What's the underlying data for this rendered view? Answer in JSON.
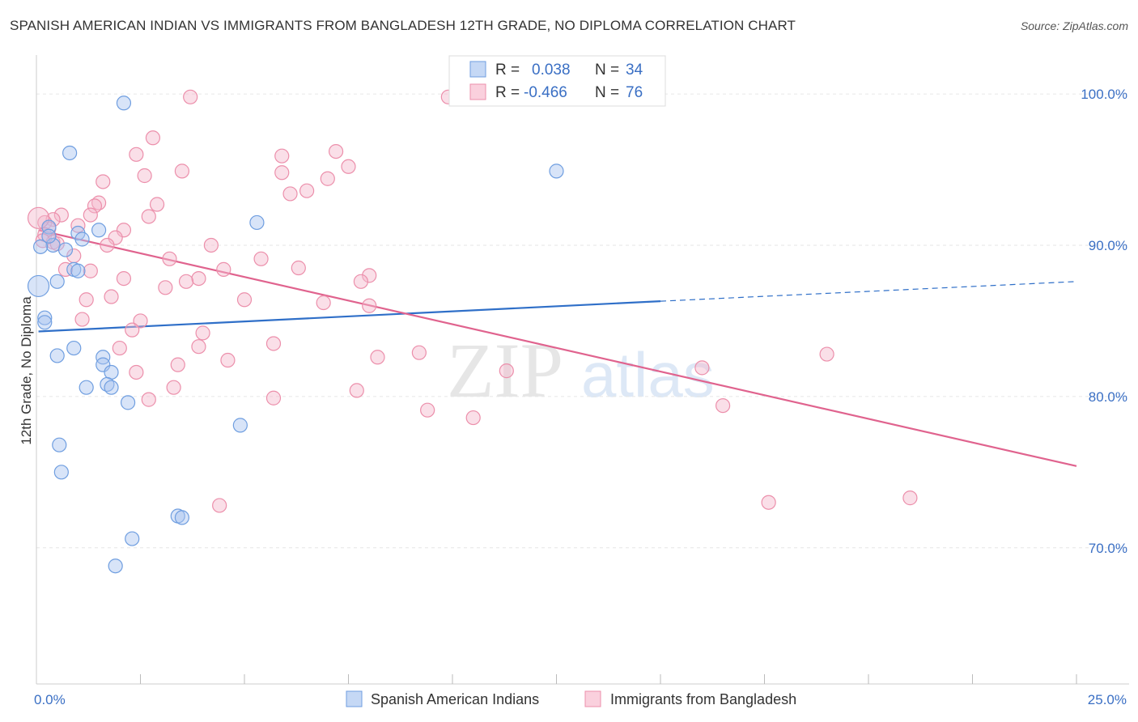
{
  "header": {
    "title": "SPANISH AMERICAN INDIAN VS IMMIGRANTS FROM BANGLADESH 12TH GRADE, NO DIPLOMA CORRELATION CHART",
    "source": "Source: ZipAtlas.com"
  },
  "watermark": {
    "zip": "ZIP",
    "atlas": "atlas"
  },
  "legend_box": {
    "rows": [
      {
        "r_label": "R =",
        "r_value": "0.038",
        "n_label": "N =",
        "n_value": "34",
        "color": "#a8c4ef"
      },
      {
        "r_label": "R =",
        "r_value": "-0.466",
        "n_label": "N =",
        "n_value": "76",
        "color": "#f5b8cb"
      }
    ]
  },
  "bottom_legend": {
    "items": [
      {
        "label": "Spanish American Indians",
        "color": "#a8c4ef"
      },
      {
        "label": "Immigrants from Bangladesh",
        "color": "#f5b8cb"
      }
    ]
  },
  "chart_data": {
    "type": "scatter",
    "title": "SPANISH AMERICAN INDIAN VS IMMIGRANTS FROM BANGLADESH 12TH GRADE, NO DIPLOMA CORRELATION CHART",
    "xlabel": "",
    "ylabel": "12th Grade, No Diploma",
    "xlim": [
      0,
      25
    ],
    "ylim": [
      61,
      103
    ],
    "x_tick_labels": [
      "0.0%",
      "25.0%"
    ],
    "y_ticks": [
      100,
      90,
      80,
      70
    ],
    "y_tick_labels": [
      "100.0%",
      "90.0%",
      "80.0%",
      "70.0%"
    ],
    "grid": true,
    "series": [
      {
        "name": "Spanish American Indians",
        "color": "#a8c4ef",
        "stroke": "#6f9ee0",
        "line_color": "#2f6fc8",
        "trend": {
          "x0": 0.05,
          "y0": 84.3,
          "x1": 15.0,
          "y1": 86.3,
          "dash_to_x": 25.0,
          "dash_to_y": 87.6
        },
        "points": [
          {
            "x": 2.1,
            "y": 99.4
          },
          {
            "x": 0.8,
            "y": 96.1
          },
          {
            "x": 12.5,
            "y": 94.9
          },
          {
            "x": 5.3,
            "y": 91.5
          },
          {
            "x": 1.5,
            "y": 91.0
          },
          {
            "x": 1.0,
            "y": 90.8
          },
          {
            "x": 1.1,
            "y": 90.4
          },
          {
            "x": 0.4,
            "y": 90.0
          },
          {
            "x": 0.1,
            "y": 89.9
          },
          {
            "x": 0.7,
            "y": 89.7
          },
          {
            "x": 0.9,
            "y": 88.4
          },
          {
            "x": 0.5,
            "y": 87.6
          },
          {
            "x": 0.05,
            "y": 87.3
          },
          {
            "x": 0.2,
            "y": 85.2
          },
          {
            "x": 0.2,
            "y": 84.9
          },
          {
            "x": 0.9,
            "y": 83.2
          },
          {
            "x": 0.5,
            "y": 82.7
          },
          {
            "x": 1.6,
            "y": 82.6
          },
          {
            "x": 1.6,
            "y": 82.1
          },
          {
            "x": 1.8,
            "y": 81.6
          },
          {
            "x": 1.7,
            "y": 80.8
          },
          {
            "x": 1.2,
            "y": 80.6
          },
          {
            "x": 1.8,
            "y": 80.6
          },
          {
            "x": 2.2,
            "y": 79.6
          },
          {
            "x": 4.9,
            "y": 78.1
          },
          {
            "x": 0.55,
            "y": 76.8
          },
          {
            "x": 0.6,
            "y": 75.0
          },
          {
            "x": 3.4,
            "y": 72.1
          },
          {
            "x": 3.5,
            "y": 72.0
          },
          {
            "x": 2.3,
            "y": 70.6
          },
          {
            "x": 1.9,
            "y": 68.8
          },
          {
            "x": 0.3,
            "y": 91.2
          },
          {
            "x": 0.3,
            "y": 90.6
          },
          {
            "x": 1.0,
            "y": 88.3
          }
        ]
      },
      {
        "name": "Immigrants from Bangladesh",
        "color": "#f5b8cb",
        "stroke": "#ec8fab",
        "line_color": "#e0638e",
        "trend": {
          "x0": 0.05,
          "y0": 91.0,
          "x1": 25.0,
          "y1": 75.4
        },
        "points": [
          {
            "x": 3.7,
            "y": 99.8
          },
          {
            "x": 9.9,
            "y": 99.8
          },
          {
            "x": 2.8,
            "y": 97.1
          },
          {
            "x": 7.2,
            "y": 96.2
          },
          {
            "x": 2.4,
            "y": 96.0
          },
          {
            "x": 5.9,
            "y": 95.9
          },
          {
            "x": 7.5,
            "y": 95.2
          },
          {
            "x": 3.5,
            "y": 94.9
          },
          {
            "x": 5.9,
            "y": 94.8
          },
          {
            "x": 2.6,
            "y": 94.6
          },
          {
            "x": 7.0,
            "y": 94.4
          },
          {
            "x": 1.6,
            "y": 94.2
          },
          {
            "x": 6.5,
            "y": 93.6
          },
          {
            "x": 6.1,
            "y": 93.4
          },
          {
            "x": 1.5,
            "y": 92.8
          },
          {
            "x": 2.9,
            "y": 92.7
          },
          {
            "x": 1.4,
            "y": 92.6
          },
          {
            "x": 0.6,
            "y": 92.0
          },
          {
            "x": 1.3,
            "y": 92.0
          },
          {
            "x": 2.7,
            "y": 91.9
          },
          {
            "x": 0.4,
            "y": 91.7
          },
          {
            "x": 0.2,
            "y": 91.5
          },
          {
            "x": 1.0,
            "y": 91.3
          },
          {
            "x": 0.3,
            "y": 91.1
          },
          {
            "x": 2.1,
            "y": 91.0
          },
          {
            "x": 0.2,
            "y": 90.7
          },
          {
            "x": 1.9,
            "y": 90.5
          },
          {
            "x": 0.4,
            "y": 90.2
          },
          {
            "x": 0.5,
            "y": 90.1
          },
          {
            "x": 1.7,
            "y": 90.0
          },
          {
            "x": 4.2,
            "y": 90.0
          },
          {
            "x": 0.9,
            "y": 89.3
          },
          {
            "x": 3.2,
            "y": 89.1
          },
          {
            "x": 5.4,
            "y": 89.1
          },
          {
            "x": 0.7,
            "y": 88.4
          },
          {
            "x": 1.3,
            "y": 88.3
          },
          {
            "x": 4.5,
            "y": 88.4
          },
          {
            "x": 6.3,
            "y": 88.5
          },
          {
            "x": 8.0,
            "y": 88.0
          },
          {
            "x": 2.1,
            "y": 87.8
          },
          {
            "x": 3.9,
            "y": 87.8
          },
          {
            "x": 3.6,
            "y": 87.6
          },
          {
            "x": 7.8,
            "y": 87.6
          },
          {
            "x": 3.1,
            "y": 87.2
          },
          {
            "x": 1.8,
            "y": 86.6
          },
          {
            "x": 1.2,
            "y": 86.4
          },
          {
            "x": 5.0,
            "y": 86.4
          },
          {
            "x": 6.9,
            "y": 86.2
          },
          {
            "x": 8.0,
            "y": 86.0
          },
          {
            "x": 1.1,
            "y": 85.1
          },
          {
            "x": 2.5,
            "y": 85.0
          },
          {
            "x": 2.3,
            "y": 84.4
          },
          {
            "x": 4.0,
            "y": 84.2
          },
          {
            "x": 5.7,
            "y": 83.5
          },
          {
            "x": 3.9,
            "y": 83.3
          },
          {
            "x": 2.0,
            "y": 83.2
          },
          {
            "x": 9.2,
            "y": 82.9
          },
          {
            "x": 19.0,
            "y": 82.8
          },
          {
            "x": 8.2,
            "y": 82.6
          },
          {
            "x": 4.6,
            "y": 82.4
          },
          {
            "x": 3.4,
            "y": 82.1
          },
          {
            "x": 16.0,
            "y": 81.9
          },
          {
            "x": 11.3,
            "y": 81.7
          },
          {
            "x": 2.4,
            "y": 81.6
          },
          {
            "x": 3.3,
            "y": 80.6
          },
          {
            "x": 7.7,
            "y": 80.4
          },
          {
            "x": 5.7,
            "y": 79.9
          },
          {
            "x": 2.7,
            "y": 79.8
          },
          {
            "x": 16.5,
            "y": 79.4
          },
          {
            "x": 9.4,
            "y": 79.1
          },
          {
            "x": 10.5,
            "y": 78.6
          },
          {
            "x": 17.6,
            "y": 73.0
          },
          {
            "x": 21.0,
            "y": 73.3
          },
          {
            "x": 4.4,
            "y": 72.8
          },
          {
            "x": 0.05,
            "y": 91.8
          },
          {
            "x": 0.15,
            "y": 90.3
          }
        ]
      }
    ]
  }
}
